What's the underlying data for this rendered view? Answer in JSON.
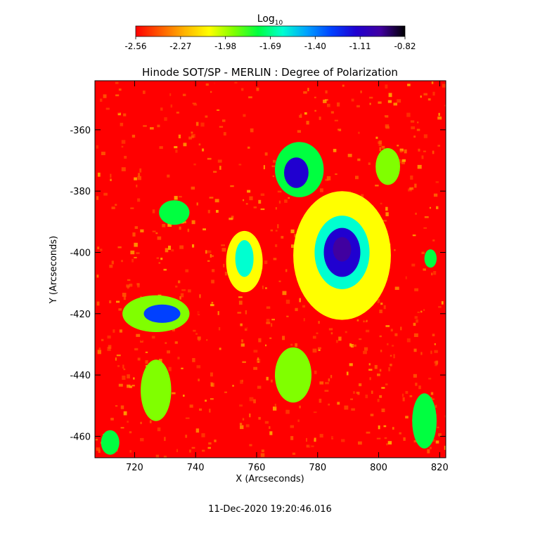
{
  "chart_data": {
    "type": "heatmap",
    "title": "Hinode SOT/SP - MERLIN : Degree of Polarization",
    "xlabel": "X (Arcseconds)",
    "ylabel": "Y (Arcseconds)",
    "timestamp": "11-Dec-2020 19:20:46.016",
    "colorbar": {
      "label": "Log",
      "label_subscript": "10",
      "range": [
        -2.56,
        -0.82
      ],
      "tick_labels": [
        "-2.56",
        "-2.27",
        "-1.98",
        "-1.69",
        "-1.40",
        "-1.11",
        "-0.82"
      ],
      "colormap": [
        "#ff0000",
        "#ff5a00",
        "#ffb400",
        "#ffff00",
        "#80ff00",
        "#00ff40",
        "#00ffd0",
        "#00a0ff",
        "#0040ff",
        "#2000d0",
        "#4000a0",
        "#000000"
      ]
    },
    "xlim": [
      707,
      822
    ],
    "ylim": [
      -467,
      -344
    ],
    "xticks": [
      720,
      740,
      760,
      780,
      800,
      820
    ],
    "xtick_labels": [
      "720",
      "740",
      "760",
      "780",
      "800",
      "820"
    ],
    "yticks": [
      -360,
      -380,
      -400,
      -420,
      -440,
      -460
    ],
    "ytick_labels": [
      "-360",
      "-380",
      "-400",
      "-420",
      "-440",
      "-460"
    ],
    "background_level": -2.5,
    "features": [
      {
        "name": "sunspot-core",
        "x": 788,
        "y": -399,
        "rx": 3,
        "ry": 4,
        "value": -0.95
      },
      {
        "name": "sunspot-inner",
        "x": 788,
        "y": -400,
        "rx": 6,
        "ry": 8,
        "value": -1.2
      },
      {
        "name": "sunspot-penumbra",
        "x": 788,
        "y": -400,
        "rx": 9,
        "ry": 12,
        "value": -1.55
      },
      {
        "name": "sunspot-halo",
        "x": 788,
        "y": -401,
        "rx": 16,
        "ry": 21,
        "value": -2.05
      },
      {
        "name": "plage-north",
        "x": 773,
        "y": -374,
        "rx": 4,
        "ry": 5,
        "value": -1.2
      },
      {
        "name": "plage-north-halo",
        "x": 774,
        "y": -373,
        "rx": 8,
        "ry": 9,
        "value": -1.8
      },
      {
        "name": "plage-west",
        "x": 729,
        "y": -420,
        "rx": 6,
        "ry": 3,
        "value": -1.35
      },
      {
        "name": "plage-west-halo",
        "x": 727,
        "y": -420,
        "rx": 11,
        "ry": 6,
        "value": -1.95
      },
      {
        "name": "plage-center",
        "x": 756,
        "y": -402,
        "rx": 3,
        "ry": 6,
        "value": -1.55
      },
      {
        "name": "plage-center-halo",
        "x": 756,
        "y": -403,
        "rx": 6,
        "ry": 10,
        "value": -2.05
      },
      {
        "name": "fibril-south-west",
        "x": 727,
        "y": -445,
        "rx": 5,
        "ry": 10,
        "value": -1.85
      },
      {
        "name": "fibril-south",
        "x": 772,
        "y": -440,
        "rx": 6,
        "ry": 9,
        "value": -2.0
      },
      {
        "name": "fibril-east",
        "x": 803,
        "y": -372,
        "rx": 4,
        "ry": 6,
        "value": -1.95
      },
      {
        "name": "patch-left-mid",
        "x": 733,
        "y": -387,
        "rx": 5,
        "ry": 4,
        "value": -1.75
      },
      {
        "name": "patch-south-east",
        "x": 815,
        "y": -455,
        "rx": 4,
        "ry": 9,
        "value": -1.75
      },
      {
        "name": "patch-far-south",
        "x": 712,
        "y": -462,
        "rx": 3,
        "ry": 4,
        "value": -1.7
      },
      {
        "name": "patch-east-small",
        "x": 817,
        "y": -402,
        "rx": 2,
        "ry": 3,
        "value": -1.8
      }
    ]
  }
}
